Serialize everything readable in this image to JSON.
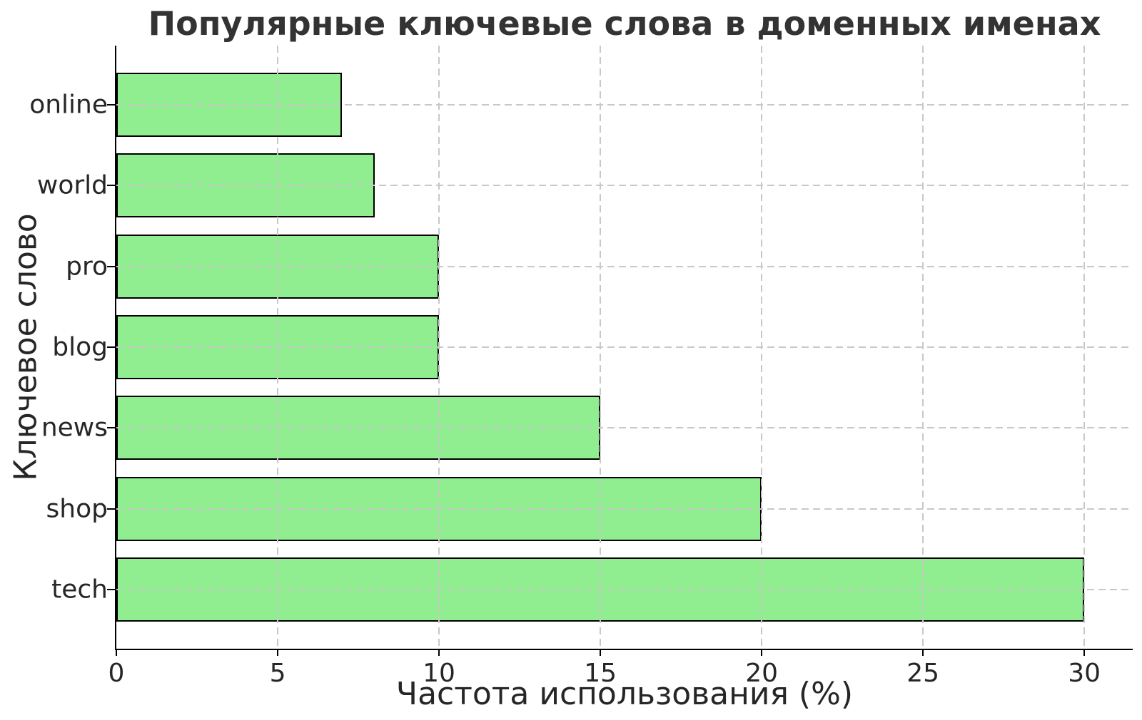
{
  "chart_data": {
    "type": "bar",
    "orientation": "horizontal",
    "title": "Популярные ключевые слова в доменных именах",
    "xlabel": "Частота использования (%)",
    "ylabel": "Ключевое слово",
    "categories": [
      "online",
      "world",
      "pro",
      "blog",
      "news",
      "shop",
      "tech"
    ],
    "values": [
      7,
      8,
      10,
      10,
      15,
      20,
      30
    ],
    "xticks": [
      0,
      5,
      10,
      15,
      20,
      25,
      30
    ],
    "xlim": [
      0,
      31.5
    ],
    "grid": true,
    "grid_style": "dashed",
    "legend": false,
    "bar_color": "#90EE90",
    "bar_edge_color": "#000000",
    "grid_color": "#c8c8c8",
    "title_color": "#333333",
    "text_color": "#262626"
  }
}
